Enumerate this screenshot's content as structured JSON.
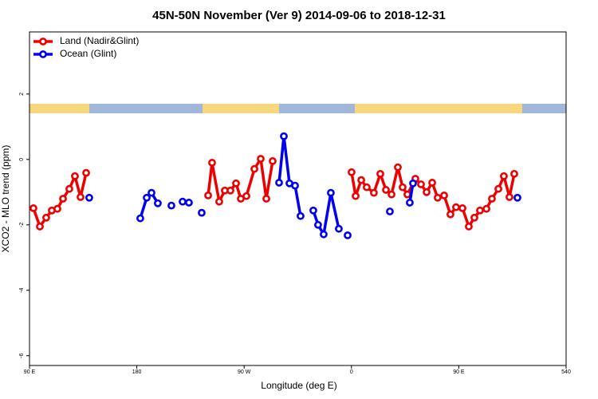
{
  "chart_data": {
    "type": "line",
    "title": "45N-50N November (Ver 9)   2014-09-06 to 2018-12-31",
    "xlabel": "Longitude (deg E)",
    "ylabel": "XCO2 - MLO trend (ppm)",
    "xlim": [
      90,
      540
    ],
    "ylim": [
      -6.3,
      3.9
    ],
    "xticks": [
      {
        "value": 90,
        "label": "90 E"
      },
      180,
      {
        "value": 270,
        "label": "90 W"
      },
      {
        "value": 360,
        "label": "0"
      },
      {
        "value": 450,
        "label": "90 E"
      },
      540
    ],
    "yticks": [
      -6,
      -4,
      -2,
      0,
      2
    ],
    "legend": "top-left",
    "series": [
      {
        "name": "Land (Nadir&Glint)",
        "color": "#ee0000",
        "x": [
          93.3,
          98.7,
          104.0,
          108.7,
          113.4,
          118.1,
          123.4,
          128.1,
          132.8,
          137.5,
          null,
          239.8,
          243.1,
          249.1,
          253.8,
          258.5,
          263.2,
          267.2,
          271.9,
          278.6,
          283.9,
          288.6,
          293.9,
          null,
          360.1,
          363.5,
          368.2,
          372.8,
          378.8,
          384.2,
          388.9,
          393.6,
          398.9,
          402.9,
          406.9,
          413.6,
          418.3,
          423.0,
          427.7,
          432.3,
          437.7,
          443.0,
          447.7,
          453.1,
          458.4,
          463.1,
          467.8,
          473.2,
          477.8,
          483.2,
          487.8,
          492.5,
          496.5
        ],
        "values": [
          -1.49,
          -2.05,
          -1.78,
          -1.56,
          -1.51,
          -1.2,
          -0.9,
          -0.51,
          -1.15,
          -0.41,
          null,
          -1.1,
          -0.1,
          -1.29,
          -0.95,
          -0.95,
          -0.73,
          -1.2,
          -1.12,
          -0.29,
          0.02,
          -1.2,
          -0.05,
          null,
          -0.39,
          -1.12,
          -0.63,
          -0.85,
          -1.02,
          -0.44,
          -0.93,
          -1.07,
          -0.24,
          -0.85,
          -1.07,
          -0.59,
          -0.76,
          -1.0,
          -0.71,
          -1.17,
          -1.1,
          -1.68,
          -1.46,
          -1.49,
          -2.05,
          -1.78,
          -1.56,
          -1.51,
          -1.2,
          -0.9,
          -0.51,
          -1.15,
          -0.44
        ]
      },
      {
        "name": "Ocean (Glint)",
        "color": "#0000ee",
        "x": [
          140.1,
          null,
          182.9,
          188.3,
          192.3,
          197.6,
          null,
          209.0,
          null,
          218.4,
          223.7,
          null,
          234.4,
          null,
          299.3,
          303.3,
          308.0,
          312.7,
          317.3,
          null,
          328.0,
          332.0,
          336.7,
          342.7,
          349.4,
          null,
          356.8,
          null,
          392.2,
          null,
          408.9,
          411.6,
          null,
          499.2
        ],
        "values": [
          -1.17,
          null,
          -1.8,
          -1.17,
          -1.02,
          -1.34,
          null,
          -1.41,
          null,
          -1.29,
          -1.32,
          null,
          -1.63,
          null,
          -0.71,
          0.71,
          -0.73,
          -0.8,
          -1.73,
          null,
          -1.56,
          -2.0,
          -2.29,
          -1.02,
          -2.12,
          null,
          -2.32,
          null,
          -1.59,
          null,
          -1.32,
          -0.73,
          null,
          -1.17
        ]
      }
    ]
  }
}
